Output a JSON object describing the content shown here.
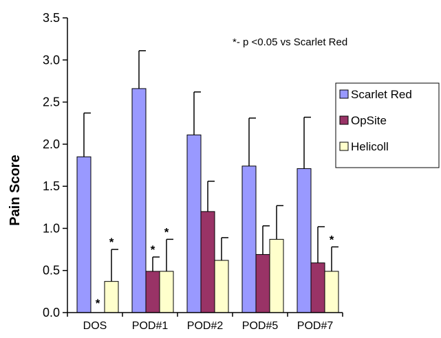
{
  "chart_data": {
    "type": "bar",
    "title": "",
    "xlabel": "",
    "ylabel": "Pain Score",
    "ylim": [
      0,
      3.5
    ],
    "yticks": [
      "0.0",
      "0.5",
      "1.0",
      "1.5",
      "2.0",
      "2.5",
      "3.0",
      "3.5"
    ],
    "categories": [
      "DOS",
      "POD#1",
      "POD#2",
      "POD#5",
      "POD#7"
    ],
    "series": [
      {
        "name": "Scarlet Red",
        "color": "#9999ff",
        "values": [
          1.85,
          2.66,
          2.11,
          1.74,
          1.71
        ],
        "errors": [
          0.52,
          0.45,
          0.51,
          0.57,
          0.61
        ],
        "marks": [
          "",
          "",
          "",
          "",
          ""
        ]
      },
      {
        "name": "OpSite",
        "color": "#993366",
        "values": [
          0.0,
          0.49,
          1.2,
          0.69,
          0.59
        ],
        "errors": [
          0.0,
          0.17,
          0.36,
          0.34,
          0.43
        ],
        "marks": [
          "*",
          "*",
          "",
          "",
          ""
        ]
      },
      {
        "name": "Helicoll",
        "color": "#ffffcc",
        "values": [
          0.37,
          0.49,
          0.62,
          0.87,
          0.49
        ],
        "errors": [
          0.38,
          0.38,
          0.27,
          0.4,
          0.29
        ],
        "marks": [
          "*",
          "*",
          "",
          "",
          "*"
        ]
      }
    ],
    "annotation": "*- p <0.05 vs Scarlet Red",
    "legend": "right",
    "grid": false
  }
}
